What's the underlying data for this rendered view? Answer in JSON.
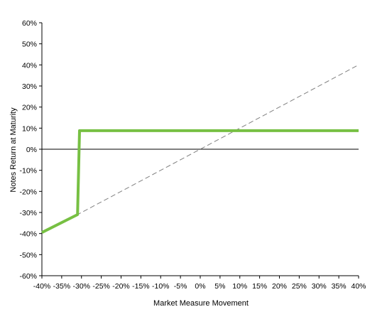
{
  "chart_data": {
    "type": "line",
    "xlabel": "Market Measure Movement",
    "ylabel": "Notes Return at Maturity",
    "xlim": [
      -40,
      40
    ],
    "ylim": [
      -60,
      60
    ],
    "x_ticks": [
      "-40%",
      "-35%",
      "-30%",
      "-25%",
      "-20%",
      "-15%",
      "-10%",
      "-5%",
      "0%",
      "5%",
      "10%",
      "15%",
      "20%",
      "25%",
      "30%",
      "35%",
      "40%"
    ],
    "y_ticks": [
      "60%",
      "50%",
      "40%",
      "30%",
      "20%",
      "10%",
      "0%",
      "-10%",
      "-20%",
      "-30%",
      "-40%",
      "-50%",
      "-60%"
    ],
    "grid": false,
    "series": [
      {
        "style": "solid",
        "color": "#77c043",
        "points": [
          [
            -40,
            -39.5
          ],
          [
            -31,
            -31
          ],
          [
            -30.5,
            8.8
          ],
          [
            40,
            8.8
          ]
        ]
      },
      {
        "style": "dashed",
        "color": "#808080",
        "points": [
          [
            -40,
            -40
          ],
          [
            40,
            40
          ]
        ]
      }
    ]
  }
}
